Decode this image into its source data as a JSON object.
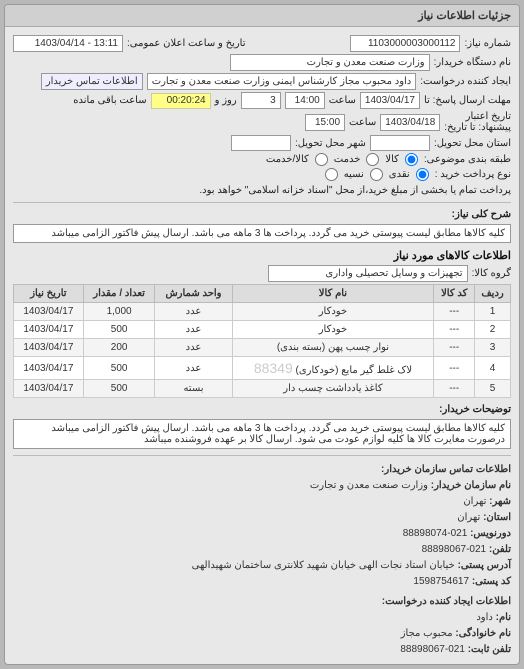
{
  "panel": {
    "title": "جزئیات اطلاعات نیاز"
  },
  "header": {
    "request_no_label": "شماره نیاز:",
    "request_no": "1103000003000112",
    "announce_label": "تاریخ و ساعت اعلان عمومی:",
    "announce_value": "13:11 - 1403/04/14",
    "buyer_label": "نام دستگاه خریدار:",
    "buyer_value": "وزارت صنعت معدن و تجارت",
    "requester_label": "ایجاد کننده درخواست:",
    "requester_value": "داود محبوب مجاز کارشناس ایمنی وزارت صنعت معدن و تجارت",
    "contact_btn": "اطلاعات تماس خریدار",
    "deadline_send_label": "مهلت ارسال پاسخ: تا",
    "deadline_send_date": "1403/04/17",
    "deadline_send_time_label": "ساعت",
    "deadline_send_time": "14:00",
    "remain_days": "3",
    "remain_days_label": "روز و",
    "remain_time": "00:20:24",
    "remain_suffix": "ساعت باقی مانده",
    "valid_label": "تاریخ اعتبار\nپیشنهاد: تا تاریخ:",
    "valid_date": "1403/04/18",
    "valid_time_label": "ساعت",
    "valid_time": "15:00",
    "province_label": "استان محل تحویل:",
    "city_label": "شهر محل تحویل:",
    "category_label": "طبقه بندی موضوعی:",
    "cat_goods": "کالا",
    "cat_services": "خدمت",
    "cat_both": "کالا/خدمت",
    "buy_type_label": "نوع پرداخت خرید :",
    "pay_cash": "نقدی",
    "pay_credit": "نسیه",
    "pay_note": "پرداخت تمام یا بخشی از مبلغ خرید،از محل \"اسناد خزانه اسلامی\" خواهد بود.",
    "need_desc_label": "شرح کلی نیاز:",
    "need_desc": "کلیه کالاها مطابق لیست پیوستی خرید می گردد. پرداخت ها 3 ماهه می باشد. ارسال پیش فاکتور الزامی میباشد"
  },
  "goods": {
    "section_title": "اطلاعات کالاهای مورد نیاز",
    "group_label": "گروه کالا:",
    "group_value": "تجهیزات و وسایل تحصیلی واداری",
    "columns": [
      "ردیف",
      "کد کالا",
      "نام کالا",
      "واحد شمارش",
      "تعداد / مقدار",
      "تاریخ نیاز"
    ],
    "rows": [
      [
        "1",
        "---",
        "خودکار",
        "عدد",
        "1,000",
        "1403/04/17"
      ],
      [
        "2",
        "---",
        "خودکار",
        "عدد",
        "500",
        "1403/04/17"
      ],
      [
        "3",
        "---",
        "نوار چسب پهن (بسته بندی)",
        "عدد",
        "200",
        "1403/04/17"
      ],
      [
        "4",
        "---",
        "لاک غلط گیر مایع (خودکاری)",
        "عدد",
        "500",
        "1403/04/17"
      ],
      [
        "5",
        "---",
        "کاغذ یادداشت چسب دار",
        "بسته",
        "500",
        "1403/04/17"
      ]
    ],
    "watermark": "88349"
  },
  "buyer_notes": {
    "label": "توضیحات خریدار:",
    "text": "کلیه کالاها مطابق لیست پیوستی خرید می گردد. پرداخت ها 3 ماهه می باشد. ارسال پیش فاکتور الزامی میباشد درصورت مغایرت کالا ها کلیه لوازم عودت می شود. ارسال کالا بر عهده فروشنده میباشد"
  },
  "contact": {
    "section_title": "اطلاعات تماس سازمان خریدار:",
    "org_label": "نام سازمان خریدار:",
    "org": "وزارت صنعت معدن و تجارت",
    "city_label": "شهر:",
    "city": "تهران",
    "province_label": "استان:",
    "province": "تهران",
    "fax_label": "دورنویس:",
    "fax": "021-88898074",
    "tel_label": "تلفن:",
    "tel": "021-88898067",
    "addr_label": "آدرس پستی:",
    "addr": "خیابان استاد نجات الهی خیابان شهید کلانتری ساختمان شهیدالهی",
    "zip_label": "کد پستی:",
    "zip": "1598754617",
    "creator_title": "اطلاعات ایجاد کننده درخواست:",
    "name_label": "نام:",
    "name": "داود",
    "lname_label": "نام خانوادگی:",
    "lname": "محبوب مجاز",
    "phone_label": "تلفن ثابت:",
    "phone": "021-88898067"
  }
}
